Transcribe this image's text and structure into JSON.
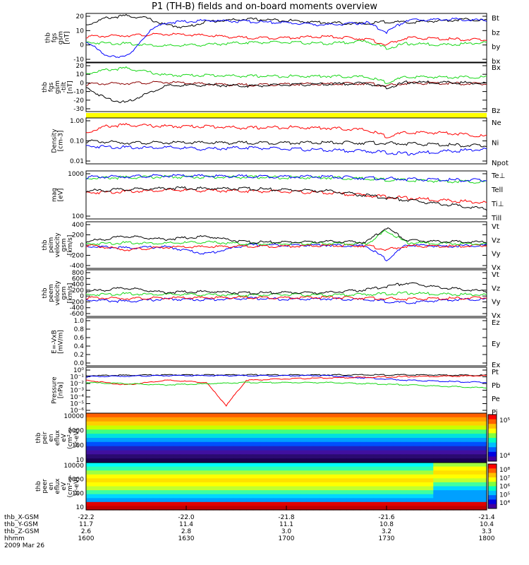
{
  "title": "P1 (TH-B) fields and on-board moments overview",
  "date_label": "2009 Mar 26",
  "colors": {
    "black": "#000000",
    "red": "#ff0000",
    "green": "#18d818",
    "blue": "#0000ff",
    "yellow": "#ffff00"
  },
  "orbit": {
    "rows": [
      {
        "label": "thb_X-GSM",
        "values": [
          "-22.2",
          "-22.0",
          "-21.8",
          "-21.6",
          "-21.4"
        ]
      },
      {
        "label": "thb_Y-GSM",
        "values": [
          "11.7",
          "11.4",
          "11.1",
          "10.8",
          "10.4"
        ]
      },
      {
        "label": "thb_Z-GSM",
        "values": [
          "2.6",
          "2.8",
          "3.0",
          "3.2",
          "3.3"
        ]
      },
      {
        "label": "hhmm",
        "values": [
          "1600",
          "1630",
          "1700",
          "1730",
          "1800"
        ]
      }
    ]
  },
  "chart_data": [
    {
      "type": "line",
      "id": "p1",
      "ylabel_lines": [
        "thb",
        "fgs",
        "gsm",
        "[nT]"
      ],
      "yticks": [
        "20",
        "10",
        "0",
        "-10"
      ],
      "ylim": [
        -20,
        22
      ],
      "legend": [
        {
          "text": "Bt",
          "color": "#000000"
        },
        {
          "text": "bz",
          "color": "#ff0000"
        },
        {
          "text": "by",
          "color": "#18d818"
        },
        {
          "text": "bx",
          "color": "#0000ff"
        }
      ],
      "series": [
        {
          "name": "Bt",
          "color": "#000000",
          "x": [
            0,
            0.05,
            0.1,
            0.15,
            0.2,
            0.25,
            0.3,
            0.4,
            0.5,
            0.6,
            0.7,
            0.75,
            0.8,
            0.85,
            0.9,
            0.95,
            1
          ],
          "y": [
            12,
            18,
            20,
            18,
            12,
            10,
            15,
            17,
            16,
            14,
            13,
            15,
            14,
            15,
            16,
            17,
            16
          ]
        },
        {
          "name": "bz",
          "color": "#ff0000",
          "x": [
            0,
            0.1,
            0.2,
            0.3,
            0.4,
            0.5,
            0.6,
            0.7,
            0.75,
            0.8,
            0.9,
            1
          ],
          "y": [
            2,
            3,
            4,
            3,
            1,
            1,
            2,
            0,
            -5,
            1,
            0,
            -1
          ]
        },
        {
          "name": "by",
          "color": "#18d818",
          "x": [
            0,
            0.1,
            0.2,
            0.3,
            0.4,
            0.5,
            0.6,
            0.7,
            0.75,
            0.8,
            0.9,
            1
          ],
          "y": [
            -3,
            -4,
            -6,
            -5,
            -3,
            -3,
            -4,
            -2,
            -8,
            -4,
            -5,
            -3
          ]
        },
        {
          "name": "bx",
          "color": "#0000ff",
          "x": [
            0,
            0.04,
            0.08,
            0.12,
            0.16,
            0.2,
            0.3,
            0.4,
            0.5,
            0.6,
            0.7,
            0.75,
            0.8,
            0.9,
            1
          ],
          "y": [
            -2,
            -12,
            -17,
            -10,
            8,
            14,
            16,
            15,
            14,
            12,
            14,
            6,
            16,
            17,
            16
          ]
        }
      ]
    },
    {
      "type": "line",
      "id": "p2",
      "ylabel_lines": [
        "thb",
        "fgs",
        "gsm",
        "-tilt",
        "[nT]"
      ],
      "yticks": [
        "20",
        "10",
        "0",
        "-10",
        "-20",
        "-30"
      ],
      "ylim": [
        -35,
        20
      ],
      "legend": [
        {
          "text": "Bx",
          "color": "#18d818"
        },
        {
          "text": "Bz",
          "color": "#8b0000"
        }
      ],
      "series": [
        {
          "name": "Bx",
          "color": "#18d818",
          "x": [
            0,
            0.05,
            0.1,
            0.15,
            0.2,
            0.3,
            0.4,
            0.5,
            0.6,
            0.7,
            0.75,
            0.8,
            0.9,
            1
          ],
          "y": [
            8,
            12,
            14,
            10,
            6,
            6,
            5,
            5,
            5,
            4,
            -2,
            4,
            4,
            4
          ]
        },
        {
          "name": "Bz",
          "color": "#8b0000",
          "x": [
            0,
            0.1,
            0.2,
            0.3,
            0.4,
            0.5,
            0.6,
            0.7,
            0.75,
            0.8,
            0.9,
            1
          ],
          "y": [
            -4,
            -3,
            -2,
            -4,
            -5,
            -4,
            -4,
            -3,
            -6,
            -3,
            -3,
            -4
          ]
        },
        {
          "name": "Bt",
          "color": "#000000",
          "x": [
            0,
            0.05,
            0.1,
            0.15,
            0.2,
            0.3,
            0.4,
            0.5,
            0.6,
            0.7,
            0.75,
            0.8,
            0.9,
            1
          ],
          "y": [
            -8,
            -20,
            -25,
            -15,
            -6,
            -5,
            -6,
            -5,
            -4,
            -3,
            -8,
            -2,
            -2,
            -3
          ]
        }
      ]
    },
    {
      "type": "bar",
      "id": "quality",
      "ylabel_lines": [],
      "yticks": [],
      "legend": [],
      "color": "#ffff00",
      "values": [
        1
      ]
    },
    {
      "type": "line",
      "id": "p3",
      "scale": "log",
      "ylabel_lines": [
        "Density",
        "[cm-3]"
      ],
      "yticks": [
        "1.00",
        "0.10",
        "0.01"
      ],
      "ylim": [
        0.01,
        1.5
      ],
      "legend": [
        {
          "text": "Ne",
          "color": "#c00000"
        },
        {
          "text": "Ni",
          "color": "#000000"
        },
        {
          "text": "Npot",
          "color": "#0000ff"
        }
      ],
      "series": [
        {
          "name": "Ne",
          "color": "#ff0000",
          "x": [
            0,
            0.05,
            0.1,
            0.2,
            0.3,
            0.4,
            0.5,
            0.6,
            0.7,
            0.75,
            0.8,
            0.9,
            1
          ],
          "y": [
            0.3,
            0.6,
            0.7,
            0.6,
            0.6,
            0.5,
            0.55,
            0.5,
            0.4,
            0.2,
            0.3,
            0.3,
            0.2
          ]
        },
        {
          "name": "Ni",
          "color": "#000000",
          "x": [
            0,
            0.1,
            0.2,
            0.3,
            0.4,
            0.5,
            0.6,
            0.7,
            0.8,
            0.9,
            1
          ],
          "y": [
            0.12,
            0.1,
            0.1,
            0.1,
            0.1,
            0.1,
            0.1,
            0.1,
            0.09,
            0.08,
            0.07
          ]
        },
        {
          "name": "Npot",
          "color": "#0000ff",
          "x": [
            0,
            0.1,
            0.2,
            0.3,
            0.4,
            0.5,
            0.6,
            0.7,
            0.8,
            0.9,
            1
          ],
          "y": [
            0.07,
            0.06,
            0.06,
            0.05,
            0.06,
            0.05,
            0.045,
            0.04,
            0.03,
            0.04,
            0.05
          ]
        }
      ]
    },
    {
      "type": "line",
      "id": "p4",
      "scale": "log",
      "ylabel_lines": [
        "mag",
        "[eV]"
      ],
      "yticks": [
        "1000",
        "100"
      ],
      "ylim": [
        50,
        10000
      ],
      "legend": [
        {
          "text": "Te⊥",
          "color": "#ff0000"
        },
        {
          "text": "Tell",
          "color": "#000000"
        },
        {
          "text": "Ti⊥",
          "color": "#0000ff"
        },
        {
          "text": "Till",
          "color": "#18d818"
        }
      ],
      "series": [
        {
          "name": "Till",
          "color": "#18d818",
          "x": [
            0,
            0.2,
            0.4,
            0.6,
            0.8,
            1
          ],
          "y": [
            4500,
            5200,
            5000,
            4800,
            3500,
            3000
          ]
        },
        {
          "name": "Ti⊥",
          "color": "#0000ff",
          "x": [
            0,
            0.2,
            0.4,
            0.6,
            0.8,
            1
          ],
          "y": [
            5000,
            5800,
            5500,
            5200,
            4000,
            3500
          ]
        },
        {
          "name": "Te⊥",
          "color": "#ff0000",
          "x": [
            0,
            0.2,
            0.4,
            0.6,
            0.8,
            1
          ],
          "y": [
            900,
            1200,
            1100,
            900,
            500,
            300
          ]
        },
        {
          "name": "Tell",
          "color": "#000000",
          "x": [
            0,
            0.2,
            0.4,
            0.6,
            0.8,
            1
          ],
          "y": [
            1100,
            1500,
            1400,
            1100,
            400,
            150
          ]
        }
      ]
    },
    {
      "type": "line",
      "id": "p5",
      "ylabel_lines": [
        "thb",
        "peim",
        "velocity",
        "gsm",
        "[km/s]"
      ],
      "yticks": [
        "400",
        "200",
        "0",
        "-200",
        "-400"
      ],
      "ylim": [
        -400,
        400
      ],
      "legend": [
        {
          "text": "Vt",
          "color": "#000000"
        },
        {
          "text": "Vz",
          "color": "#ff0000"
        },
        {
          "text": "Vy",
          "color": "#18d818"
        },
        {
          "text": "Vx",
          "color": "#0000ff"
        }
      ],
      "series": [
        {
          "name": "Vx",
          "color": "#0000ff",
          "x": [
            0,
            0.1,
            0.2,
            0.3,
            0.4,
            0.5,
            0.6,
            0.7,
            0.75,
            0.8,
            0.9,
            1
          ],
          "y": [
            -20,
            -50,
            -30,
            -150,
            0,
            0,
            0,
            -20,
            -250,
            0,
            -20,
            0
          ]
        },
        {
          "name": "Vz",
          "color": "#ff0000",
          "x": [
            0,
            0.1,
            0.2,
            0.3,
            0.4,
            0.5,
            0.6,
            0.7,
            0.75,
            0.8,
            0.9,
            1
          ],
          "y": [
            0,
            -80,
            -40,
            -30,
            -20,
            -20,
            -10,
            -10,
            -80,
            -20,
            -20,
            -10
          ]
        },
        {
          "name": "Vy",
          "color": "#18d818",
          "x": [
            0,
            0.1,
            0.2,
            0.3,
            0.4,
            0.5,
            0.6,
            0.7,
            0.75,
            0.8,
            0.9,
            1
          ],
          "y": [
            20,
            40,
            30,
            50,
            20,
            20,
            30,
            20,
            250,
            40,
            30,
            20
          ]
        },
        {
          "name": "Vt",
          "color": "#000000",
          "x": [
            0,
            0.1,
            0.2,
            0.3,
            0.4,
            0.5,
            0.6,
            0.7,
            0.75,
            0.8,
            0.9,
            1
          ],
          "y": [
            60,
            150,
            100,
            150,
            50,
            50,
            60,
            50,
            300,
            80,
            60,
            50
          ]
        }
      ]
    },
    {
      "type": "line",
      "id": "p6",
      "ylabel_lines": [
        "thb",
        "peem",
        "velocity",
        "gsm",
        "[km/s]"
      ],
      "yticks": [
        "800",
        "600",
        "400",
        "200",
        "0",
        "-200",
        "-400",
        "-600"
      ],
      "ylim": [
        -600,
        800
      ],
      "legend": [
        {
          "text": "Vt",
          "color": "#000000"
        },
        {
          "text": "Vz",
          "color": "#ff0000"
        },
        {
          "text": "Vy",
          "color": "#18d818"
        },
        {
          "text": "Vx",
          "color": "#0000ff"
        }
      ],
      "series": [
        {
          "name": "Vx",
          "color": "#0000ff",
          "x": [
            0,
            0.1,
            0.2,
            0.3,
            0.4,
            0.5,
            0.6,
            0.7,
            0.8,
            0.9,
            1
          ],
          "y": [
            -100,
            -150,
            -80,
            -100,
            -60,
            -80,
            -70,
            -100,
            -200,
            -100,
            -80
          ]
        },
        {
          "name": "Vz",
          "color": "#ff0000",
          "x": [
            0,
            0.1,
            0.2,
            0.3,
            0.4,
            0.5,
            0.6,
            0.7,
            0.8,
            0.9,
            1
          ],
          "y": [
            -40,
            -60,
            -50,
            -40,
            -30,
            -40,
            -30,
            -50,
            -80,
            -60,
            -40
          ]
        },
        {
          "name": "Vy",
          "color": "#18d818",
          "x": [
            0,
            0.1,
            0.2,
            0.3,
            0.4,
            0.5,
            0.6,
            0.7,
            0.8,
            0.9,
            1
          ],
          "y": [
            50,
            80,
            60,
            50,
            40,
            50,
            40,
            60,
            100,
            70,
            50
          ]
        },
        {
          "name": "Vt",
          "color": "#000000",
          "x": [
            0,
            0.1,
            0.2,
            0.3,
            0.4,
            0.5,
            0.6,
            0.7,
            0.8,
            0.9,
            1
          ],
          "y": [
            150,
            250,
            120,
            150,
            100,
            120,
            110,
            200,
            400,
            250,
            150
          ]
        }
      ]
    },
    {
      "type": "line",
      "id": "p7",
      "ylabel_lines": [
        "E=-VxB",
        "[mV/m]"
      ],
      "yticks": [
        "1.0",
        "0.8",
        "0.6",
        "0.4",
        "0.2",
        "0.0"
      ],
      "ylim": [
        0,
        1
      ],
      "legend": [
        {
          "text": "Ez",
          "color": "#ff0000"
        },
        {
          "text": "Ey",
          "color": "#18d818"
        },
        {
          "text": "Ex",
          "color": "#0000ff"
        }
      ],
      "series": []
    },
    {
      "type": "line",
      "id": "p8",
      "scale": "log",
      "ylabel_lines": [
        "Pressure",
        "[nPa]"
      ],
      "yticks": [
        "10⁰",
        "10⁻¹",
        "10⁻²",
        "10⁻³",
        "10⁻⁴",
        "10⁻⁵",
        "10⁻⁶"
      ],
      "ylim": [
        1e-06,
        1
      ],
      "legend": [
        {
          "text": "Pt",
          "color": "#000000"
        },
        {
          "text": "Pb",
          "color": "#ff0000"
        },
        {
          "text": "Pe",
          "color": "#18d818"
        },
        {
          "text": "Pi",
          "color": "#0000ff"
        }
      ],
      "series": [
        {
          "name": "Pt",
          "color": "#000000",
          "x": [
            0,
            0.2,
            0.4,
            0.6,
            0.8,
            1
          ],
          "y": [
            0.08,
            0.1,
            0.1,
            0.1,
            0.1,
            0.09
          ]
        },
        {
          "name": "Pi",
          "color": "#0000ff",
          "x": [
            0,
            0.2,
            0.4,
            0.6,
            0.8,
            1
          ],
          "y": [
            0.06,
            0.08,
            0.08,
            0.08,
            0.02,
            0.01
          ]
        },
        {
          "name": "Pb",
          "color": "#ff0000",
          "x": [
            0,
            0.1,
            0.2,
            0.3,
            0.35,
            0.4,
            0.5,
            0.6,
            0.8,
            1
          ],
          "y": [
            0.02,
            0.005,
            0.02,
            0.01,
            1e-05,
            0.02,
            0.03,
            0.04,
            0.06,
            0.08
          ]
        },
        {
          "name": "Pe",
          "color": "#18d818",
          "x": [
            0,
            0.2,
            0.4,
            0.6,
            0.8,
            1
          ],
          "y": [
            0.01,
            0.005,
            0.01,
            0.01,
            0.005,
            0.002
          ]
        }
      ]
    },
    {
      "type": "heatmap",
      "id": "p9",
      "ylabel_lines": [
        "thb",
        "peir",
        "en",
        "eflux",
        "eV",
        "(cm²-s-",
        "sr-eV)"
      ],
      "yticks": [
        "10000",
        "1000",
        "100",
        "10"
      ],
      "colorbar_ticks": [
        "10⁵",
        "10⁴"
      ]
    },
    {
      "type": "heatmap",
      "id": "p10",
      "ylabel_lines": [
        "thb",
        "peer",
        "en",
        "eflux",
        "eV",
        "(cm²-s-",
        "sr-eV)"
      ],
      "yticks": [
        "10000",
        "1000",
        "100",
        "10"
      ],
      "colorbar_ticks": [
        "10⁸",
        "10⁷",
        "10⁶",
        "10⁵",
        "10⁴"
      ]
    }
  ]
}
